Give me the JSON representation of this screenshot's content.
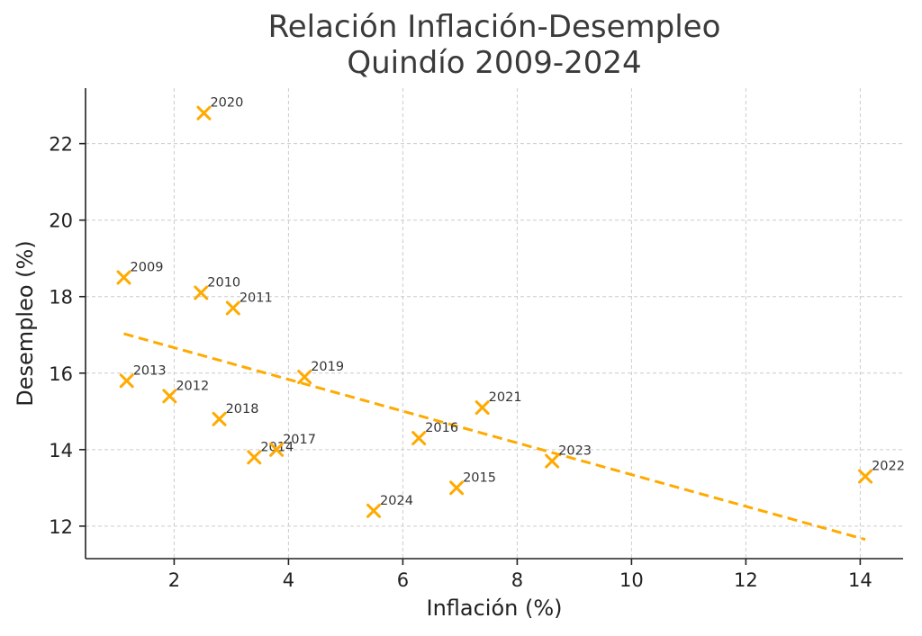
{
  "chart_data": {
    "type": "scatter",
    "title": [
      "Relación Inflación-Desempleo",
      "Quindío 2009-2024"
    ],
    "xlabel": "Inflación (%)",
    "ylabel": "Desempleo (%)",
    "xlim": [
      0.45,
      14.75
    ],
    "ylim": [
      11.15,
      23.45
    ],
    "xticks": [
      2,
      4,
      6,
      8,
      10,
      12,
      14
    ],
    "yticks": [
      12,
      14,
      16,
      18,
      20,
      22
    ],
    "grid": true,
    "marker": "x",
    "color": "#FFAA00",
    "points": [
      {
        "label": "2009",
        "x": 1.12,
        "y": 18.5
      },
      {
        "label": "2010",
        "x": 2.47,
        "y": 18.1
      },
      {
        "label": "2011",
        "x": 3.03,
        "y": 17.7
      },
      {
        "label": "2012",
        "x": 1.92,
        "y": 15.4
      },
      {
        "label": "2013",
        "x": 1.17,
        "y": 15.8
      },
      {
        "label": "2014",
        "x": 3.4,
        "y": 13.8
      },
      {
        "label": "2015",
        "x": 6.94,
        "y": 13.0
      },
      {
        "label": "2016",
        "x": 6.28,
        "y": 14.3
      },
      {
        "label": "2017",
        "x": 3.79,
        "y": 14.0
      },
      {
        "label": "2018",
        "x": 2.79,
        "y": 14.8
      },
      {
        "label": "2019",
        "x": 4.28,
        "y": 15.9
      },
      {
        "label": "2020",
        "x": 2.52,
        "y": 22.8
      },
      {
        "label": "2021",
        "x": 7.39,
        "y": 15.1
      },
      {
        "label": "2022",
        "x": 14.09,
        "y": 13.3
      },
      {
        "label": "2023",
        "x": 8.61,
        "y": 13.7
      },
      {
        "label": "2024",
        "x": 5.49,
        "y": 12.4
      }
    ],
    "trendline": {
      "x": [
        1.12,
        14.09
      ],
      "y": [
        17.03,
        11.65
      ],
      "style": "dashed"
    }
  }
}
